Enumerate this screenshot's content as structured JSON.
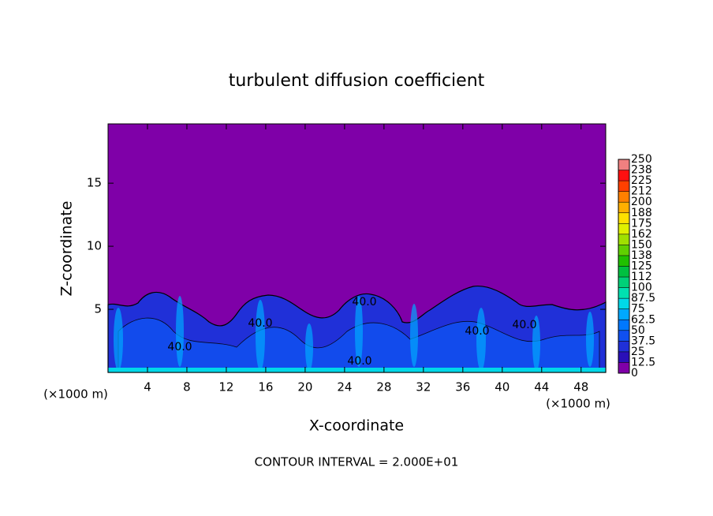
{
  "chart_data": {
    "type": "contour",
    "title": "turbulent diffusion coefficient",
    "x_label": "X-coordinate",
    "y_label": "Z-coordinate",
    "x_unit_left": "(×1000 m)",
    "x_unit_right": "(×1000 m)",
    "footer": "CONTOUR INTERVAL = 2.000E+01",
    "xlim": [
      0,
      50.5
    ],
    "xticks": [
      4,
      8,
      12,
      16,
      20,
      24,
      28,
      32,
      36,
      40,
      44,
      48
    ],
    "ylim": [
      0,
      19.7
    ],
    "yticks": [
      5,
      10,
      15
    ],
    "contour_labels": [
      "40.0",
      "40.0",
      "40.0",
      "40.0",
      "40.0",
      "40.0"
    ],
    "colorbar_ticks": [
      0,
      12.5,
      25,
      37.5,
      50,
      62.5,
      75,
      87.5,
      100,
      {
        "value": 112.5,
        "label": "112"
      },
      125,
      {
        "value": 137.5,
        "label": "138"
      },
      150,
      {
        "value": 162.5,
        "label": "162"
      },
      175,
      {
        "value": 187.5,
        "label": "188"
      },
      200,
      {
        "value": 212.5,
        "label": "212"
      },
      225,
      {
        "value": 237.5,
        "label": "238"
      },
      250
    ],
    "colorbar_colors": [
      "#7f00a8",
      "#2a10b8",
      "#2030d8",
      "#1050f0",
      "#0078ff",
      "#00a8ff",
      "#00d8e8",
      "#00e0b0",
      "#00d078",
      "#00c040",
      "#20c000",
      "#60d000",
      "#a0e000",
      "#e0f000",
      "#ffe000",
      "#ffb000",
      "#ff8000",
      "#ff4000",
      "#ff1010",
      "#f08080"
    ]
  }
}
